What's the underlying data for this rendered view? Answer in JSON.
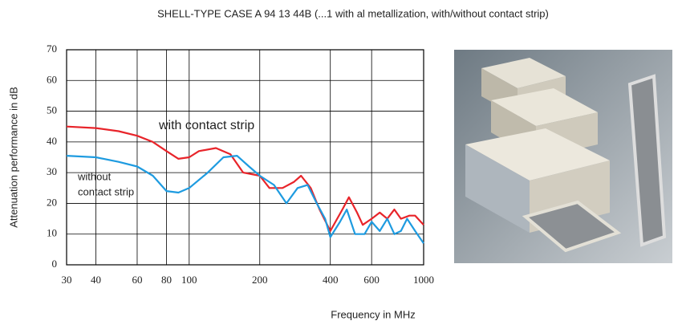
{
  "chart_data": {
    "type": "line",
    "title": "SHELL-TYPE CASE A 94 13 44B (...1 with al metallization, with/without contact strip)",
    "x_label": "Frequency in MHz",
    "y_label": "Attenuation performance in dB",
    "xscale": "log",
    "xlim": [
      30,
      1000
    ],
    "xticks": [
      30,
      40,
      60,
      80,
      100,
      200,
      400,
      600,
      1000
    ],
    "ylim": [
      0,
      70
    ],
    "yticks": [
      0,
      10,
      20,
      30,
      40,
      50,
      60,
      70
    ],
    "grid": true,
    "annotations": [
      {
        "lines": [
          "with contact strip"
        ]
      },
      {
        "lines": [
          "without",
          "contact strip"
        ]
      }
    ],
    "series": [
      {
        "color": "#e8242a",
        "x": [
          30,
          40,
          50,
          60,
          70,
          80,
          90,
          100,
          110,
          130,
          150,
          170,
          200,
          220,
          250,
          280,
          300,
          330,
          360,
          400,
          450,
          480,
          520,
          550,
          600,
          650,
          700,
          750,
          800,
          870,
          920,
          1000
        ],
        "values": [
          45,
          44.5,
          43.5,
          42,
          40,
          37,
          34.5,
          35,
          37,
          38,
          36,
          30,
          29,
          25,
          25,
          27,
          29,
          25,
          18,
          11,
          18,
          22,
          17,
          13,
          15,
          17,
          15,
          18,
          15,
          16,
          16,
          13
        ]
      },
      {
        "color": "#1e9be0",
        "x": [
          30,
          40,
          50,
          60,
          70,
          80,
          90,
          100,
          120,
          140,
          160,
          180,
          200,
          230,
          260,
          290,
          320,
          350,
          380,
          400,
          440,
          470,
          510,
          560,
          600,
          650,
          700,
          750,
          800,
          850,
          920,
          1000
        ],
        "values": [
          35.5,
          35,
          33.5,
          32,
          29,
          24,
          23.5,
          25,
          30,
          35,
          35.5,
          32,
          29,
          26,
          20,
          25,
          26,
          20,
          15,
          9,
          14,
          18,
          10,
          10,
          14,
          11,
          15,
          10,
          11,
          15,
          11,
          7
        ]
      }
    ]
  }
}
